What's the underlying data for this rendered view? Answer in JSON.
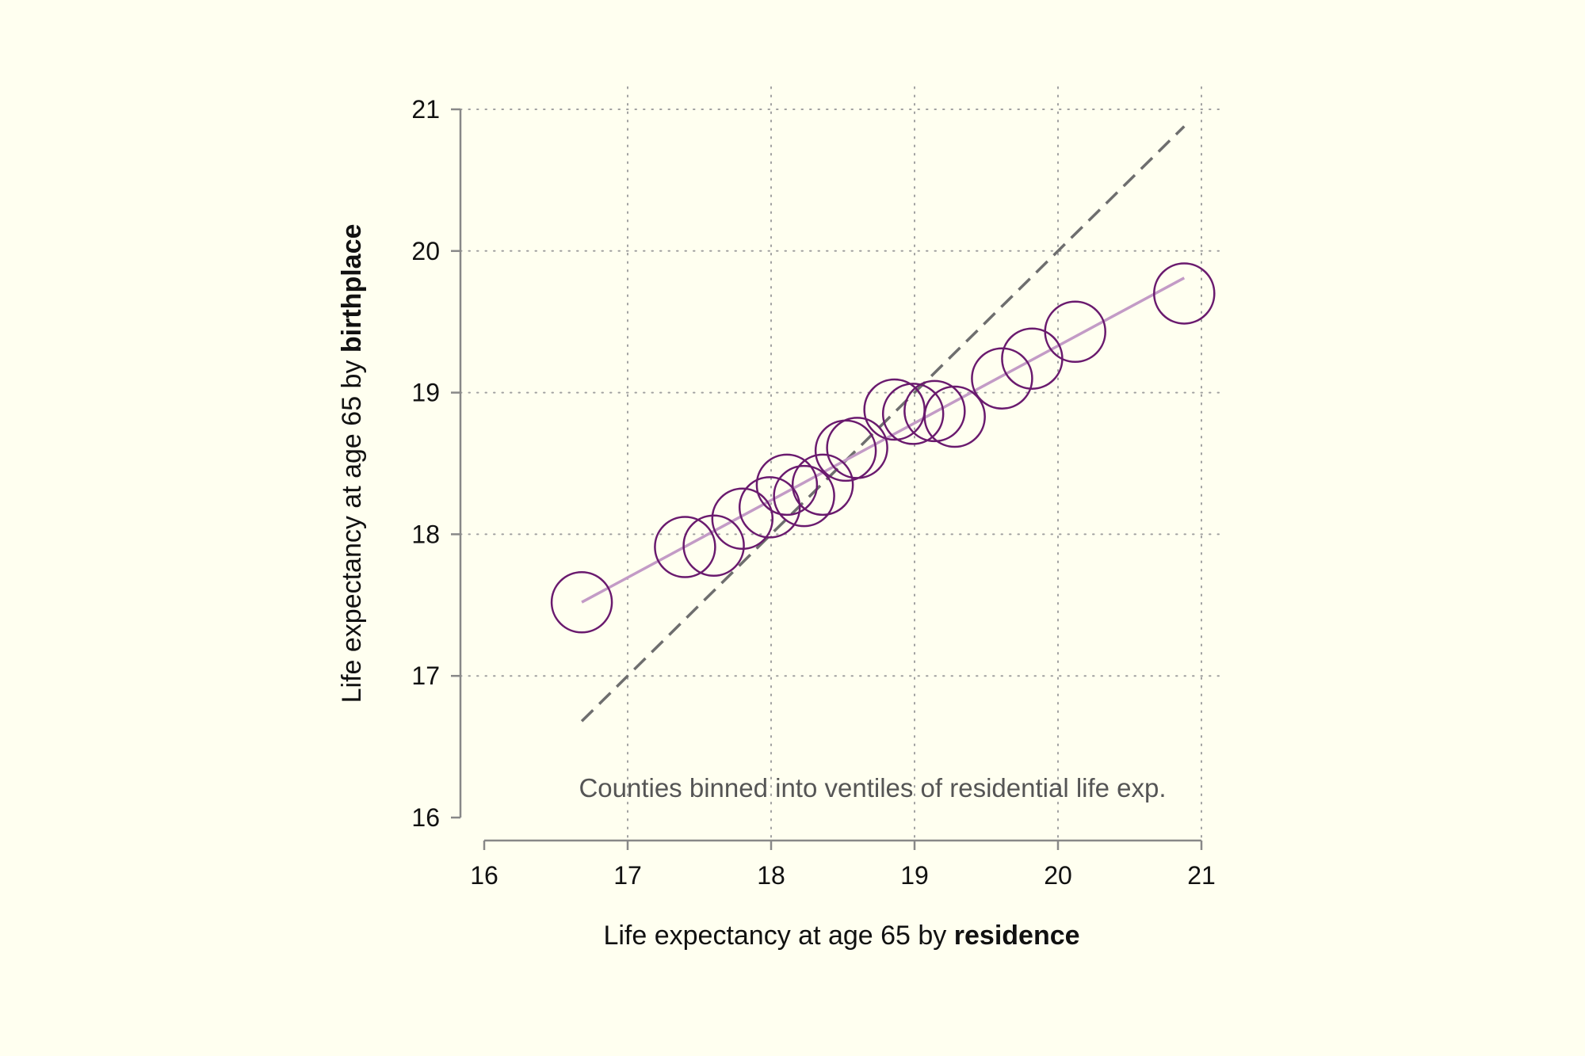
{
  "chart_data": {
    "type": "scatter",
    "xlabel": {
      "prefix": "Life expectancy at age 65 by ",
      "emph": "residence"
    },
    "ylabel": {
      "prefix": "Life expectancy at age 65 by ",
      "emph": "birthplace"
    },
    "xlim": [
      16,
      21
    ],
    "ylim": [
      16,
      21
    ],
    "xticks": [
      16,
      17,
      18,
      19,
      20,
      21
    ],
    "yticks": [
      16,
      17,
      18,
      19,
      20,
      21
    ],
    "grid": true,
    "annotation": "Counties binned into ventiles of residential life exp.",
    "colors": {
      "background": "#fffff0",
      "points": "#6a1a6e",
      "fit_line": "#c39bc6",
      "reference_line": "#6e6e6e",
      "grid": "#a0a0a0",
      "axis": "#888888"
    },
    "points": [
      {
        "x": 16.68,
        "y": 17.52
      },
      {
        "x": 17.4,
        "y": 17.91
      },
      {
        "x": 17.6,
        "y": 17.92
      },
      {
        "x": 17.8,
        "y": 18.11
      },
      {
        "x": 17.99,
        "y": 18.19
      },
      {
        "x": 18.11,
        "y": 18.35
      },
      {
        "x": 18.23,
        "y": 18.27
      },
      {
        "x": 18.36,
        "y": 18.35
      },
      {
        "x": 18.52,
        "y": 18.59
      },
      {
        "x": 18.6,
        "y": 18.61
      },
      {
        "x": 18.86,
        "y": 18.88
      },
      {
        "x": 18.99,
        "y": 18.85
      },
      {
        "x": 19.14,
        "y": 18.87
      },
      {
        "x": 19.28,
        "y": 18.83
      },
      {
        "x": 19.61,
        "y": 19.1
      },
      {
        "x": 19.82,
        "y": 19.24
      },
      {
        "x": 20.12,
        "y": 19.43
      },
      {
        "x": 20.88,
        "y": 19.7
      }
    ],
    "fit_line": {
      "x": [
        16.68,
        20.88
      ],
      "y": [
        17.52,
        19.81
      ]
    },
    "reference_line": {
      "x": [
        16.68,
        20.88
      ],
      "y": [
        16.68,
        20.88
      ]
    }
  }
}
